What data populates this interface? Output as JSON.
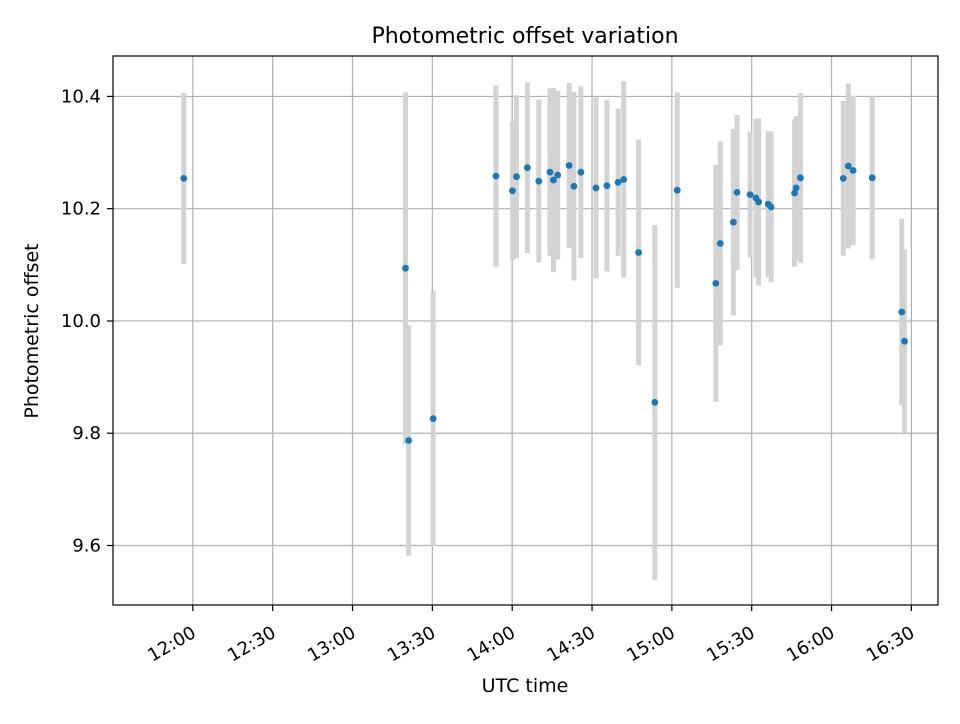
{
  "chart_data": {
    "type": "scatter",
    "title": "Photometric offset variation",
    "xlabel": "UTC time",
    "ylabel": "Photometric offset",
    "grid": true,
    "xlim_minutes": [
      690,
      1000
    ],
    "ylim": [
      9.494,
      10.472
    ],
    "x_ticks": [
      {
        "minutes": 720,
        "label": "12:00"
      },
      {
        "minutes": 750,
        "label": "12:30"
      },
      {
        "minutes": 780,
        "label": "13:00"
      },
      {
        "minutes": 810,
        "label": "13:30"
      },
      {
        "minutes": 840,
        "label": "14:00"
      },
      {
        "minutes": 870,
        "label": "14:30"
      },
      {
        "minutes": 900,
        "label": "15:00"
      },
      {
        "minutes": 930,
        "label": "15:30"
      },
      {
        "minutes": 960,
        "label": "16:00"
      },
      {
        "minutes": 990,
        "label": "16:30"
      }
    ],
    "y_ticks": [
      {
        "value": 9.6,
        "label": "9.6"
      },
      {
        "value": 9.8,
        "label": "9.8"
      },
      {
        "value": 10.0,
        "label": "10.0"
      },
      {
        "value": 10.2,
        "label": "10.2"
      },
      {
        "value": 10.4,
        "label": "10.4"
      }
    ],
    "point_color": "#1f77b4",
    "errorbar_color": "#d3d3d3",
    "points": [
      {
        "t": 716.6,
        "y": 10.254,
        "err": 0.152
      },
      {
        "t": 799.9,
        "y": 10.094,
        "err": 0.313
      },
      {
        "t": 801.1,
        "y": 9.787,
        "err": 0.205
      },
      {
        "t": 810.3,
        "y": 9.826,
        "err": 0.227
      },
      {
        "t": 833.9,
        "y": 10.258,
        "err": 0.162
      },
      {
        "t": 840.1,
        "y": 10.232,
        "err": 0.123
      },
      {
        "t": 841.6,
        "y": 10.257,
        "err": 0.145
      },
      {
        "t": 845.7,
        "y": 10.273,
        "err": 0.152
      },
      {
        "t": 850.0,
        "y": 10.249,
        "err": 0.145
      },
      {
        "t": 854.2,
        "y": 10.265,
        "err": 0.149
      },
      {
        "t": 855.5,
        "y": 10.251,
        "err": 0.164
      },
      {
        "t": 857.1,
        "y": 10.26,
        "err": 0.15
      },
      {
        "t": 861.4,
        "y": 10.277,
        "err": 0.147
      },
      {
        "t": 863.2,
        "y": 10.24,
        "err": 0.168
      },
      {
        "t": 865.8,
        "y": 10.265,
        "err": 0.153
      },
      {
        "t": 871.5,
        "y": 10.237,
        "err": 0.161
      },
      {
        "t": 875.6,
        "y": 10.241,
        "err": 0.153
      },
      {
        "t": 879.8,
        "y": 10.247,
        "err": 0.131
      },
      {
        "t": 881.9,
        "y": 10.252,
        "err": 0.175
      },
      {
        "t": 887.5,
        "y": 10.122,
        "err": 0.201
      },
      {
        "t": 893.6,
        "y": 9.855,
        "err": 0.316
      },
      {
        "t": 902.0,
        "y": 10.233,
        "err": 0.174
      },
      {
        "t": 916.5,
        "y": 10.067,
        "err": 0.211
      },
      {
        "t": 918.2,
        "y": 10.138,
        "err": 0.182
      },
      {
        "t": 923.1,
        "y": 10.176,
        "err": 0.166
      },
      {
        "t": 924.5,
        "y": 10.229,
        "err": 0.138
      },
      {
        "t": 929.4,
        "y": 10.225,
        "err": 0.112
      },
      {
        "t": 931.6,
        "y": 10.219,
        "err": 0.141
      },
      {
        "t": 932.6,
        "y": 10.212,
        "err": 0.149
      },
      {
        "t": 936.2,
        "y": 10.208,
        "err": 0.13
      },
      {
        "t": 937.3,
        "y": 10.203,
        "err": 0.134
      },
      {
        "t": 946.1,
        "y": 10.228,
        "err": 0.131
      },
      {
        "t": 946.7,
        "y": 10.237,
        "err": 0.128
      },
      {
        "t": 948.3,
        "y": 10.255,
        "err": 0.151
      },
      {
        "t": 964.4,
        "y": 10.254,
        "err": 0.138
      },
      {
        "t": 966.3,
        "y": 10.276,
        "err": 0.147
      },
      {
        "t": 968.1,
        "y": 10.268,
        "err": 0.133
      },
      {
        "t": 975.3,
        "y": 10.255,
        "err": 0.145
      },
      {
        "t": 986.4,
        "y": 10.016,
        "err": 0.166
      },
      {
        "t": 987.4,
        "y": 9.964,
        "err": 0.163
      }
    ]
  }
}
